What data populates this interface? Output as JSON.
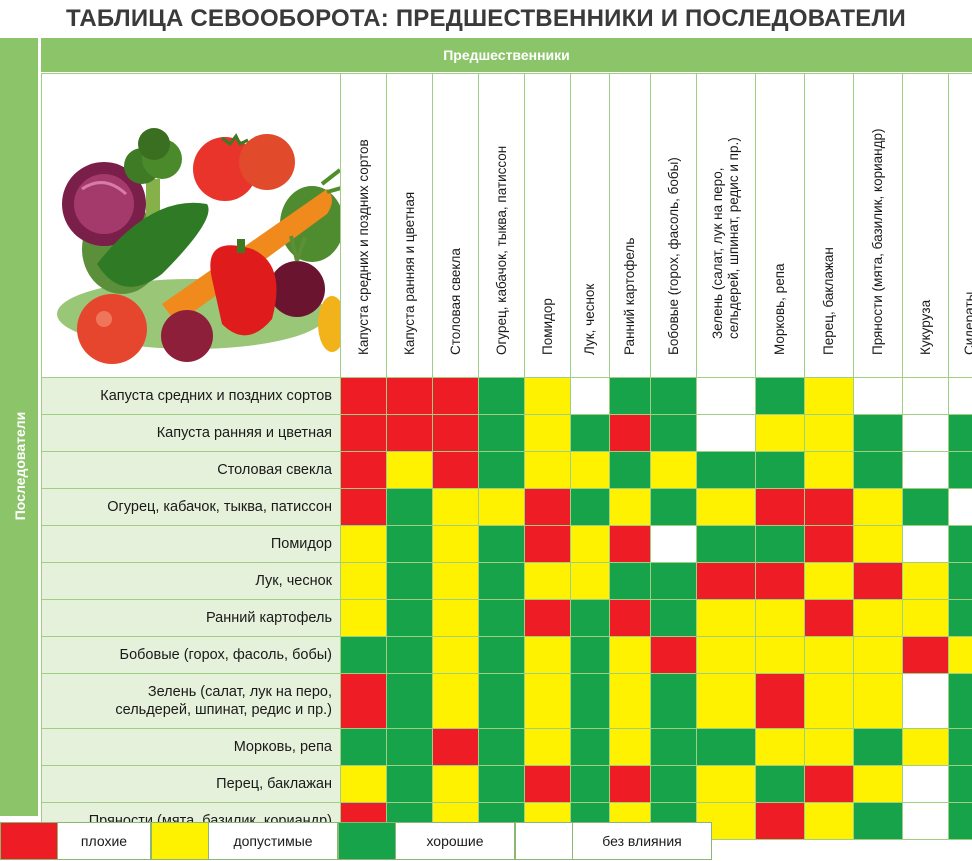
{
  "title": "ТАБЛИЦА СЕВООБОРОТА: ПРЕДШЕСТВЕННИКИ И ПОСЛЕДОВАТЕЛИ",
  "predecessors_label": "Предшественники",
  "followers_label": "Последователи",
  "columns": [
    "Капуста средних и поздних сортов",
    "Капуста ранняя и цветная",
    "Столовая свекла",
    "Огурец, кабачок, тыква, патиссон",
    "Помидор",
    "Лук, чеснок",
    "Ранний картофель",
    "Бобовые (горох, фасоль, бобы)",
    "Зелень (салат, лук на перо,\nсельдерей, шпинат, редис и пр.)",
    "Морковь, репа",
    "Перец, баклажан",
    "Пряности (мята, базилик, кориандр)",
    "Кукуруза",
    "Сидераты"
  ],
  "rows": [
    {
      "label": "Капуста средних и поздних сортов",
      "cells": [
        "R",
        "R",
        "R",
        "G",
        "Y",
        "W",
        "G",
        "G",
        "W",
        "G",
        "Y",
        "W",
        "W",
        "W"
      ]
    },
    {
      "label": "Капуста ранняя и цветная",
      "cells": [
        "R",
        "R",
        "R",
        "G",
        "Y",
        "G",
        "R",
        "G",
        "W",
        "Y",
        "Y",
        "G",
        "W",
        "G"
      ]
    },
    {
      "label": "Столовая свекла",
      "cells": [
        "R",
        "Y",
        "R",
        "G",
        "Y",
        "Y",
        "G",
        "Y",
        "G",
        "G",
        "Y",
        "G",
        "W",
        "G"
      ]
    },
    {
      "label": "Огурец, кабачок, тыква, патиссон",
      "cells": [
        "R",
        "G",
        "Y",
        "Y",
        "R",
        "G",
        "Y",
        "G",
        "Y",
        "R",
        "R",
        "Y",
        "G",
        "W"
      ]
    },
    {
      "label": "Помидор",
      "cells": [
        "Y",
        "G",
        "Y",
        "G",
        "R",
        "Y",
        "R",
        "W",
        "G",
        "G",
        "R",
        "Y",
        "W",
        "G"
      ]
    },
    {
      "label": "Лук, чеснок",
      "cells": [
        "Y",
        "G",
        "Y",
        "G",
        "Y",
        "Y",
        "G",
        "G",
        "R",
        "R",
        "Y",
        "R",
        "Y",
        "G"
      ]
    },
    {
      "label": "Ранний картофель",
      "cells": [
        "Y",
        "G",
        "Y",
        "G",
        "R",
        "G",
        "R",
        "G",
        "Y",
        "Y",
        "R",
        "Y",
        "Y",
        "G"
      ]
    },
    {
      "label": "Бобовые (горох, фасоль, бобы)",
      "cells": [
        "G",
        "G",
        "Y",
        "G",
        "Y",
        "G",
        "Y",
        "R",
        "Y",
        "Y",
        "Y",
        "Y",
        "R",
        "Y"
      ]
    },
    {
      "label": "Зелень (салат, лук на перо,\nсельдерей, шпинат, редис и пр.)",
      "cells": [
        "R",
        "G",
        "Y",
        "G",
        "Y",
        "G",
        "Y",
        "G",
        "Y",
        "R",
        "Y",
        "Y",
        "W",
        "G"
      ]
    },
    {
      "label": "Морковь, репа",
      "cells": [
        "G",
        "G",
        "R",
        "G",
        "Y",
        "G",
        "Y",
        "G",
        "G",
        "Y",
        "Y",
        "G",
        "Y",
        "G"
      ]
    },
    {
      "label": "Перец, баклажан",
      "cells": [
        "Y",
        "G",
        "Y",
        "G",
        "R",
        "G",
        "R",
        "G",
        "Y",
        "G",
        "R",
        "Y",
        "W",
        "G"
      ]
    },
    {
      "label": "Пряности (мята, базилик, кориандр)",
      "cells": [
        "R",
        "G",
        "Y",
        "G",
        "Y",
        "G",
        "Y",
        "G",
        "Y",
        "R",
        "Y",
        "G",
        "W",
        "G"
      ]
    }
  ],
  "colors": {
    "R": "#ee1c24",
    "Y": "#fff200",
    "G": "#16a34a",
    "W": "#ffffff"
  },
  "legend": [
    {
      "key": "R",
      "label": "плохие"
    },
    {
      "key": "Y",
      "label": "допустимые"
    },
    {
      "key": "G",
      "label": "хорошие"
    },
    {
      "key": "W",
      "label": "без влияния"
    }
  ]
}
